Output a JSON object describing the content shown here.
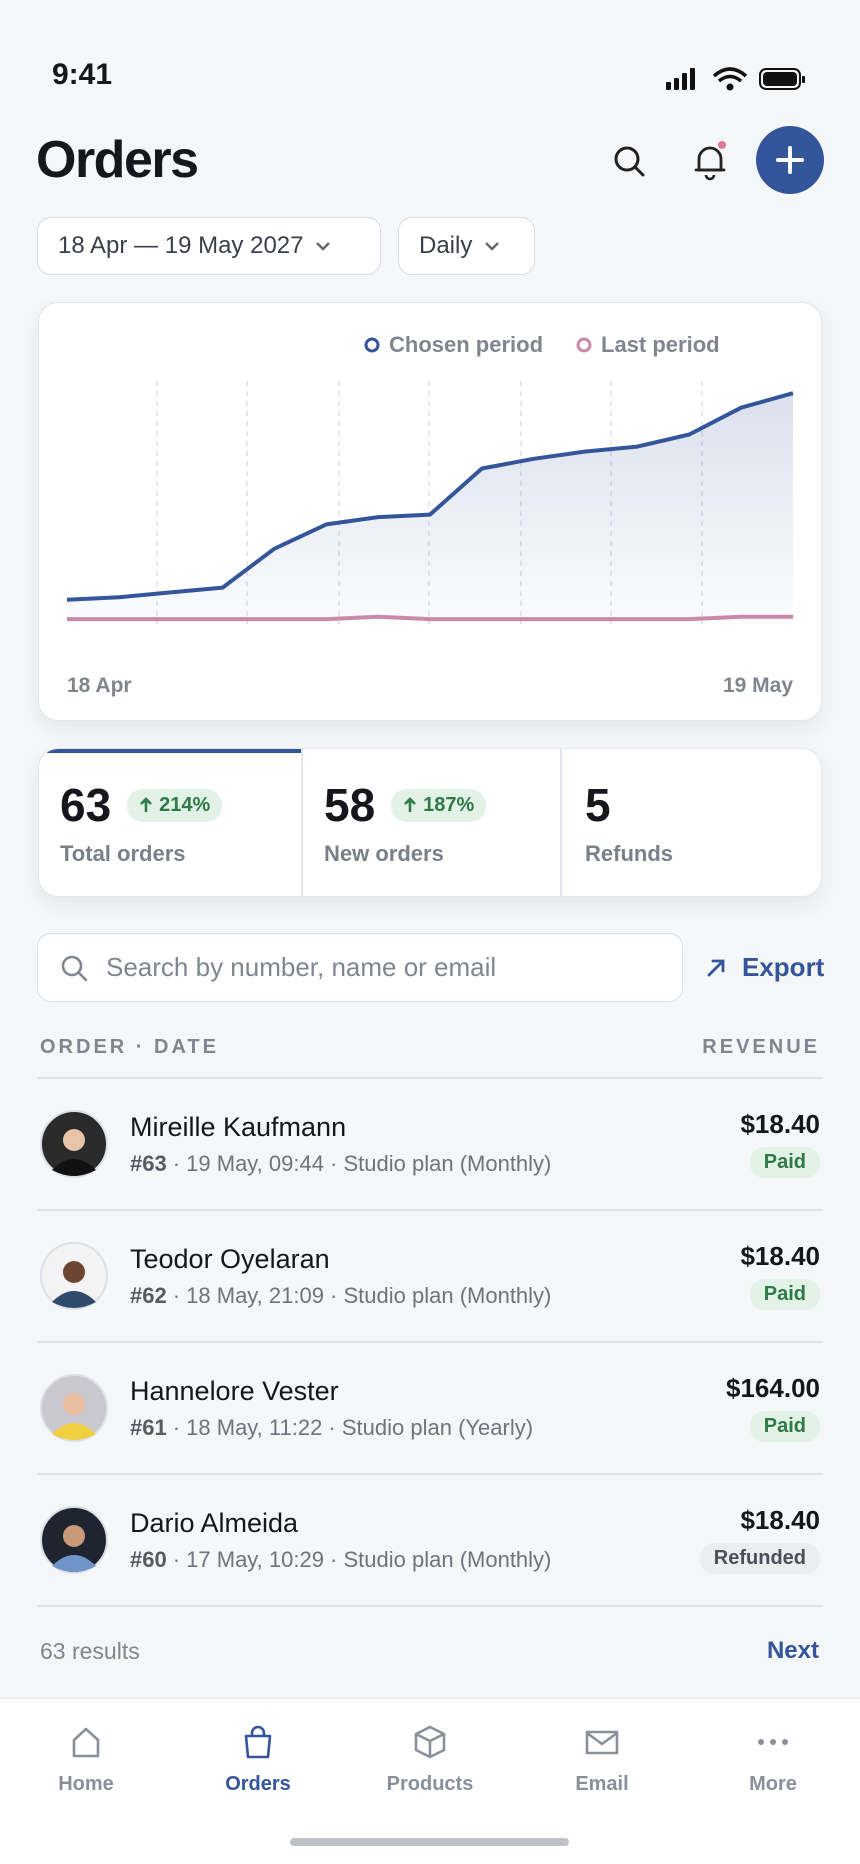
{
  "status_bar": {
    "time": "9:41"
  },
  "header": {
    "title": "Orders"
  },
  "filters": {
    "date_range": "18 Apr — 19 May 2027",
    "interval": "Daily"
  },
  "chart_data": {
    "type": "line",
    "categories": [
      "18 Apr",
      null,
      null,
      null,
      null,
      null,
      null,
      null,
      null,
      null,
      null,
      null,
      null,
      null,
      "19 May"
    ],
    "series": [
      {
        "name": "Chosen period",
        "color": "#34559a",
        "values": [
          10,
          11,
          13,
          15,
          31,
          41,
          44,
          45,
          64,
          68,
          71,
          73,
          78,
          89,
          95
        ]
      },
      {
        "name": "Last period",
        "color": "#c98aa8",
        "values": [
          2,
          2,
          2,
          2,
          2,
          2,
          3,
          2,
          2,
          2,
          2,
          2,
          2,
          3,
          3
        ]
      }
    ],
    "ylim": [
      0,
      100
    ]
  },
  "stats": [
    {
      "value": "63",
      "change": "214%",
      "label": "Total orders"
    },
    {
      "value": "58",
      "change": "187%",
      "label": "New orders"
    },
    {
      "value": "5",
      "label": "Refunds"
    }
  ],
  "search": {
    "placeholder": "Search by number, name or email",
    "export": "Export"
  },
  "table": {
    "header_left": "ORDER · DATE",
    "header_right": "REVENUE",
    "rows": [
      {
        "name": "Mireille Kaufmann",
        "number": "#63",
        "details": "· 19 May, 09:44 · Studio plan (Monthly)",
        "amount": "$18.40",
        "status": "Paid"
      },
      {
        "name": "Teodor Oyelaran",
        "number": "#62",
        "details": "· 18 May, 21:09 · Studio plan (Monthly)",
        "amount": "$18.40",
        "status": "Paid"
      },
      {
        "name": "Hannelore Vester",
        "number": "#61",
        "details": "· 18 May, 11:22 · Studio plan (Yearly)",
        "amount": "$164.00",
        "status": "Paid"
      },
      {
        "name": "Dario Almeida",
        "number": "#60",
        "details": "· 17 May, 10:29 · Studio plan (Monthly)",
        "amount": "$18.40",
        "status": "Refunded"
      }
    ]
  },
  "footer": {
    "results": "63 results",
    "next": "Next"
  },
  "nav": [
    "Home",
    "Orders",
    "Products",
    "Email",
    "More"
  ]
}
